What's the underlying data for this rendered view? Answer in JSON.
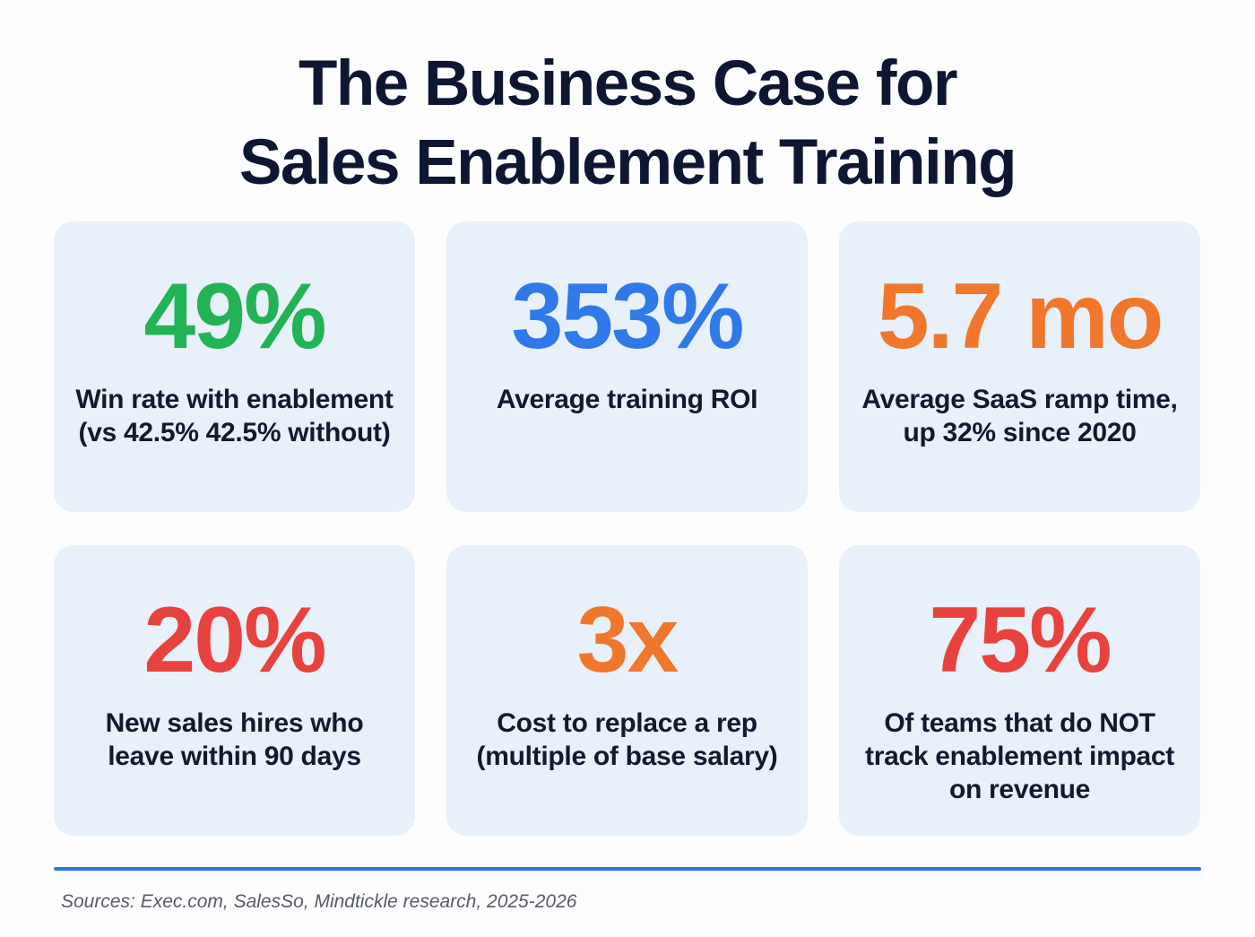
{
  "title": {
    "line1": "The Business Case for",
    "line2": "Sales Enablement Training"
  },
  "colors": {
    "green": "#22b356",
    "blue": "#2f7ae8",
    "orange": "#f0772b",
    "red": "#e8423f",
    "text": "#0f1730",
    "card_bg": "#e8f0f9",
    "rule": "#2b78e0"
  },
  "stats": [
    {
      "value": "49%",
      "label": "Win rate with enablement (vs 42.5% 42.5% without)",
      "color": "#22b356"
    },
    {
      "value": "353%",
      "label": "Average training ROI",
      "color": "#2f7ae8"
    },
    {
      "value": "5.7 mo",
      "label": "Average SaaS ramp time, up 32% since 2020",
      "color": "#f0772b"
    },
    {
      "value": "20%",
      "label": "New sales hires who leave within 90 days",
      "color": "#e8423f"
    },
    {
      "value": "3x",
      "label": "Cost to replace a rep (multiple of base salary)",
      "color": "#f0772b"
    },
    {
      "value": "75%",
      "label": "Of teams that do NOT track enablement impact on revenue",
      "color": "#e8423f"
    }
  ],
  "footer": {
    "sources": "Sources: Exec.com, SalesSo, Mindtickle research, 2025-2026"
  }
}
